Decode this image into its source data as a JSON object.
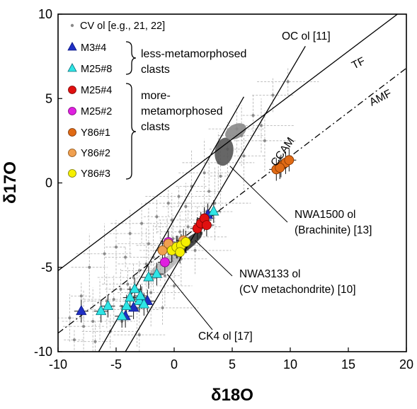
{
  "chart_data": {
    "type": "scatter",
    "xlabel": "δ18O",
    "ylabel": "δ17O",
    "xlim": [
      -10,
      20
    ],
    "ylim": [
      -10,
      10
    ],
    "x_ticks": [
      "-10",
      "-5",
      "0",
      "5",
      "10",
      "15",
      "20"
    ],
    "y_ticks": [
      "-10",
      "-5",
      "0",
      "5",
      "10"
    ],
    "grid": false,
    "legend_position": "top-left",
    "legend": {
      "cv_label": "CV ol [e.g., 21, 22]",
      "group_less": "less-metamorphosed clasts",
      "group_less_lines": [
        "less-metamorphosed",
        "clasts"
      ],
      "group_more": "more-metamorphosed clasts",
      "group_more_lines": [
        "more-",
        "metamorphosed",
        "clasts"
      ]
    },
    "reference_lines": [
      {
        "name": "TF",
        "x": [
          -10,
          20
        ],
        "y": [
          -5.2,
          10.4
        ],
        "style": "solid"
      },
      {
        "name": "AMF",
        "x": [
          -10,
          20
        ],
        "y": [
          -8.9,
          6.8
        ],
        "style": "dashdot"
      },
      {
        "name": "OC ol [11]",
        "x": [
          -4.2,
          11.3
        ],
        "y": [
          -10,
          8.1
        ],
        "style": "solid"
      },
      {
        "name": "CCAM",
        "x": [
          -6.5,
          6.0
        ],
        "y": [
          -10,
          5.1
        ],
        "style": "solid"
      }
    ],
    "regions": [
      {
        "name": "NWA1500 ol (Brachinite) [13]",
        "center": [
          4.3,
          1.85
        ],
        "color": "#555555"
      },
      {
        "name": "upper gray field",
        "center": [
          5.3,
          3.05
        ],
        "color": "#8a8a8a"
      },
      {
        "name": "NWA3133 ol (CV metachondrite) [10]",
        "center": [
          1.2,
          -3.6
        ],
        "color": "#333333"
      },
      {
        "name": "CK4 ol [17]",
        "center": [
          -0.8,
          -4.9
        ],
        "color": "#8a8a8a"
      }
    ],
    "annotations": [
      {
        "text": "OC ol [11]",
        "lines": [
          "OC ol [11]"
        ]
      },
      {
        "text": "TF",
        "lines": [
          "TF"
        ]
      },
      {
        "text": "AMF",
        "lines": [
          "AMF"
        ]
      },
      {
        "text": "CCAM",
        "lines": [
          "CCAM"
        ]
      },
      {
        "text": "NWA1500 ol (Brachinite) [13]",
        "lines": [
          "NWA1500 ol",
          "(Brachinite) [13]"
        ]
      },
      {
        "text": "NWA3133 ol (CV metachondrite) [10]",
        "lines": [
          "NWA3133 ol",
          "(CV metachondrite) [10]"
        ]
      },
      {
        "text": "CK4 ol [17]",
        "lines": [
          "CK4 ol [17]"
        ]
      }
    ],
    "cv_ol_points": [
      [
        -8.6,
        -9.3
      ],
      [
        -7.8,
        -8.5
      ],
      [
        -7.0,
        -8.2
      ],
      [
        -6.4,
        -7.5
      ],
      [
        -5.8,
        -7.0
      ],
      [
        -5.2,
        -6.9
      ],
      [
        -4.6,
        -6.3
      ],
      [
        -4.0,
        -6.0
      ],
      [
        -3.5,
        -5.6
      ],
      [
        -3.0,
        -5.2
      ],
      [
        -2.4,
        -4.8
      ],
      [
        -1.8,
        -4.4
      ],
      [
        -1.2,
        -4.0
      ],
      [
        -0.6,
        -3.7
      ],
      [
        -0.1,
        -3.3
      ],
      [
        0.5,
        -2.9
      ],
      [
        1.2,
        -2.6
      ],
      [
        2.0,
        -2.2
      ],
      [
        2.8,
        -1.7
      ],
      [
        3.5,
        -1.2
      ],
      [
        -7.3,
        -5.0
      ],
      [
        -6.0,
        -4.2
      ],
      [
        -5.0,
        -3.8
      ],
      [
        -3.8,
        -3.0
      ],
      [
        -2.8,
        -2.4
      ],
      [
        -1.5,
        -2.0
      ],
      [
        -0.5,
        -1.2
      ],
      [
        0.4,
        -0.8
      ],
      [
        1.5,
        -0.2
      ],
      [
        2.6,
        0.6
      ],
      [
        3.8,
        1.2
      ],
      [
        4.6,
        2.0
      ],
      [
        5.4,
        3.2
      ],
      [
        6.8,
        4.0
      ],
      [
        8.5,
        5.2
      ],
      [
        9.8,
        6.0
      ],
      [
        -4.5,
        -8.2
      ],
      [
        -3.2,
        -7.5
      ],
      [
        -2.0,
        -6.5
      ],
      [
        -0.8,
        -5.5
      ],
      [
        0.6,
        -4.5
      ],
      [
        1.8,
        -4.0
      ],
      [
        -6.8,
        -9.4
      ],
      [
        -5.5,
        -8.8
      ],
      [
        -8.0,
        -6.7
      ],
      [
        -4.2,
        -4.4
      ],
      [
        -2.2,
        -3.6
      ],
      [
        3.0,
        -0.5
      ],
      [
        5.8,
        2.8
      ],
      [
        7.5,
        3.4
      ],
      [
        -9.0,
        -8.0
      ],
      [
        -3.0,
        -9.0
      ],
      [
        -1.0,
        -7.4
      ],
      [
        0.0,
        -6.1
      ],
      [
        2.2,
        -3.2
      ],
      [
        4.0,
        0.4
      ],
      [
        6.0,
        1.6
      ],
      [
        7.8,
        2.5
      ],
      [
        -0.2,
        -2.2
      ],
      [
        1.0,
        -1.4
      ]
    ],
    "series": [
      {
        "name": "M3#4",
        "marker": "triangle",
        "color": "#1f2fc4",
        "edge": "#0a1680",
        "x": [
          -8.0,
          -4.2,
          -3.5,
          -2.8,
          -2.3,
          2.6,
          2.9
        ],
        "y": [
          -7.6,
          -7.9,
          -7.4,
          -6.8,
          -7.0,
          -2.2,
          -1.9
        ]
      },
      {
        "name": "M25#8",
        "marker": "triangle",
        "color": "#2ee6e6",
        "edge": "#0a6f7a",
        "x": [
          -6.3,
          -5.7,
          -4.5,
          -4.1,
          -3.8,
          -3.4,
          -3.0,
          -2.6,
          -2.9,
          -2.2,
          -1.5,
          3.4
        ],
        "y": [
          -7.6,
          -7.3,
          -7.9,
          -7.3,
          -6.8,
          -6.3,
          -7.0,
          -7.2,
          -6.7,
          -5.6,
          -5.4,
          -1.7
        ]
      },
      {
        "name": "M25#4",
        "marker": "circle",
        "color": "#e01010",
        "edge": "#7a0000",
        "x": [
          2.0,
          2.3,
          2.6,
          2.8
        ],
        "y": [
          -2.7,
          -2.4,
          -2.1,
          -2.5
        ]
      },
      {
        "name": "M25#2",
        "marker": "circle",
        "color": "#e020e0",
        "edge": "#7a007a",
        "x": [
          -0.5,
          -0.8,
          -0.2
        ],
        "y": [
          -3.5,
          -4.7,
          -4.0
        ]
      },
      {
        "name": "Y86#1",
        "marker": "circle",
        "color": "#e06a14",
        "edge": "#7a3000",
        "x": [
          8.8,
          9.2,
          9.6,
          9.9,
          9.1
        ],
        "y": [
          0.8,
          1.0,
          1.2,
          1.35,
          0.9
        ]
      },
      {
        "name": "Y86#2",
        "marker": "circle",
        "color": "#f0a050",
        "edge": "#8a4d10",
        "x": [
          -1.0,
          -0.5,
          0.3,
          0.8
        ],
        "y": [
          -4.0,
          -3.6,
          -3.8,
          -3.4
        ]
      },
      {
        "name": "Y86#3",
        "marker": "circle",
        "color": "#f6f000",
        "edge": "#7a7a00",
        "x": [
          -0.2,
          0.2,
          0.6,
          1.0,
          0.5
        ],
        "y": [
          -4.0,
          -3.8,
          -3.7,
          -3.5,
          -4.1
        ]
      }
    ]
  }
}
